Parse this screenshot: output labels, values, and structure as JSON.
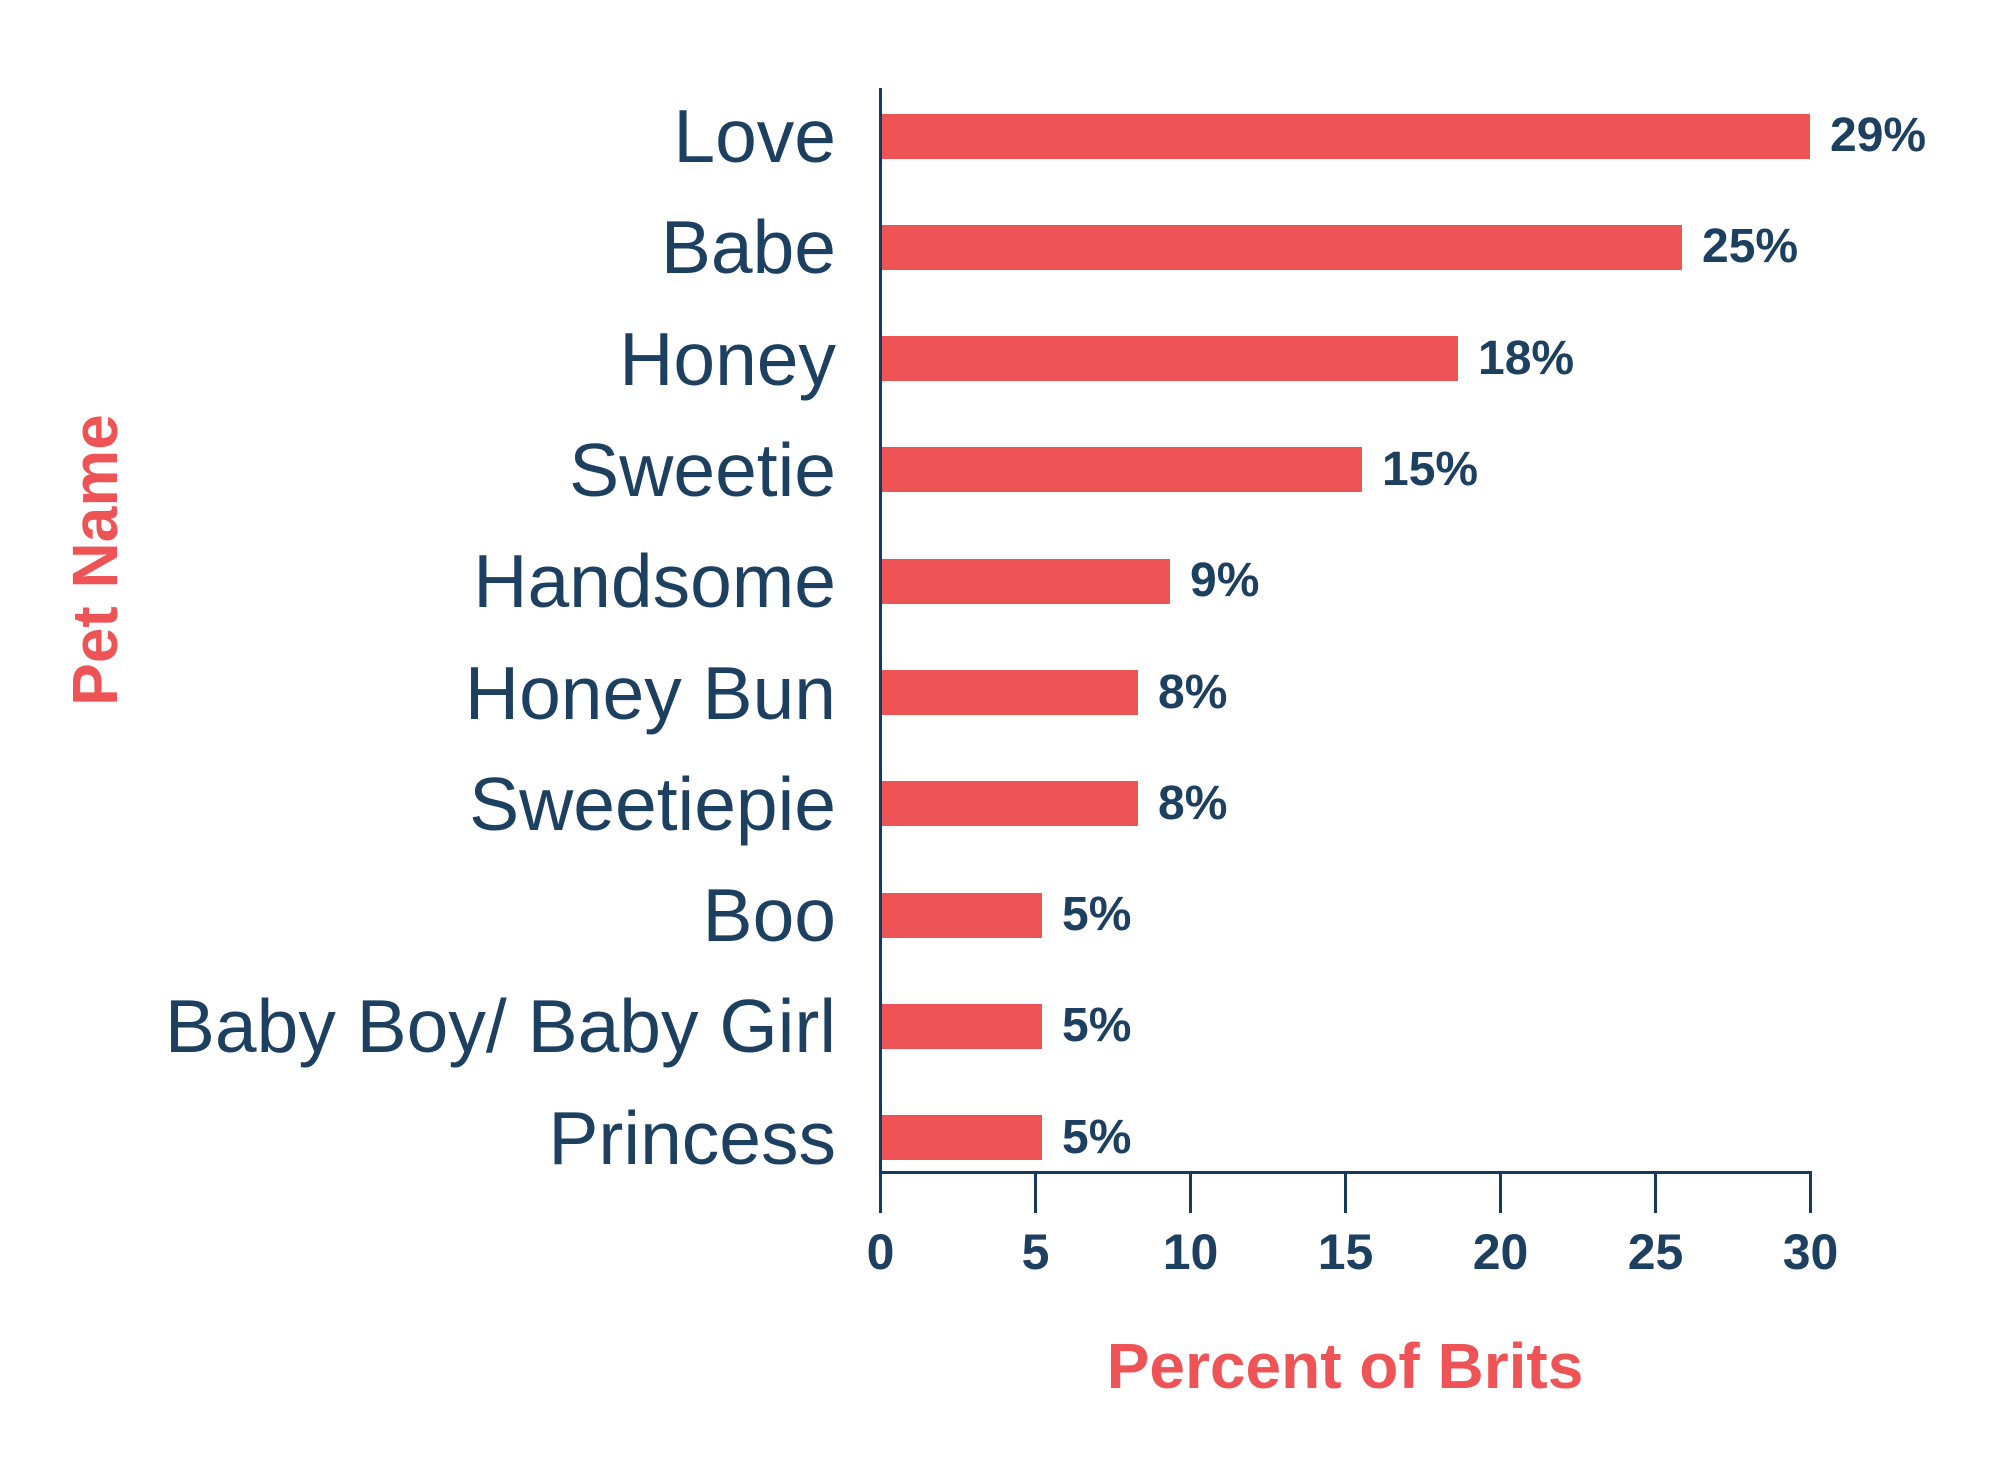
{
  "chart_data": {
    "type": "bar",
    "orientation": "horizontal",
    "categories": [
      "Love",
      "Babe",
      "Honey",
      "Sweetie",
      "Handsome",
      "Honey Bun",
      "Sweetiepie",
      "Boo",
      "Baby Boy/ Baby Girl",
      "Princess"
    ],
    "values": [
      29,
      25,
      18,
      15,
      9,
      8,
      8,
      5,
      5,
      5
    ],
    "value_suffix": "%",
    "xlabel": "Percent of Brits",
    "ylabel": "Pet Name",
    "xlim": [
      0,
      30
    ],
    "xticks": [
      0,
      5,
      10,
      15,
      20,
      25,
      30
    ],
    "grid": false,
    "legend": false,
    "colors": {
      "bar": "#EE5355",
      "category_text": "#1D4061",
      "value_text": "#1D4061",
      "tick_text": "#1D4061",
      "axis_line": "#17395B",
      "axis_title": "#EE5355"
    }
  }
}
